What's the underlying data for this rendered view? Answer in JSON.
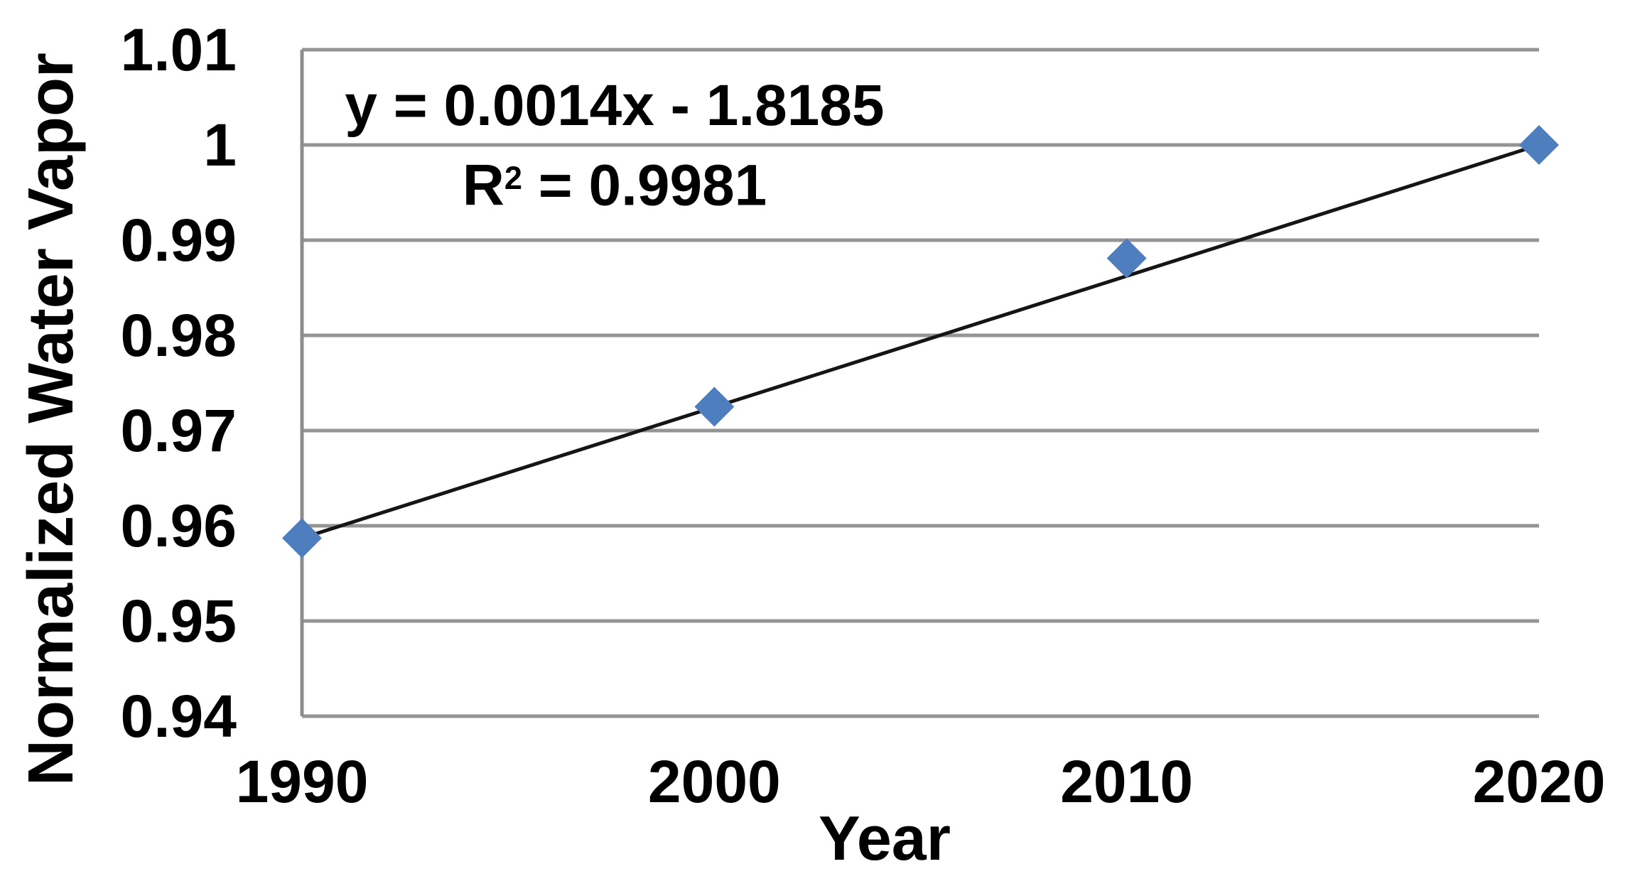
{
  "figure": {
    "background": "#ffffff",
    "text_color": "#000000"
  },
  "chart_data": {
    "type": "scatter",
    "title": "",
    "xlabel": "Year",
    "ylabel": "Normalized Water Vapor",
    "x": [
      1990,
      2000,
      2010,
      2020
    ],
    "values": [
      0.9587,
      0.9725,
      0.9881,
      1.0
    ],
    "xlim": [
      1990,
      2020
    ],
    "ylim": [
      0.94,
      1.01
    ],
    "x_ticks": [
      1990,
      2000,
      2010,
      2020
    ],
    "x_tick_labels": [
      "1990",
      "2000",
      "2010",
      "2020"
    ],
    "y_ticks": [
      0.94,
      0.95,
      0.96,
      0.97,
      0.98,
      0.99,
      1.0,
      1.01
    ],
    "y_tick_labels": [
      "0.94",
      "0.95",
      "0.96",
      "0.97",
      "0.98",
      "0.99",
      "1",
      "1.01"
    ],
    "grid": "horizontal-only",
    "legend": "none",
    "gridline_color": "#949494",
    "axis_color": "#8c8c8c",
    "marker": {
      "shape": "diamond",
      "color": "#4E7EBD"
    },
    "trendline": {
      "type": "linear",
      "color": "#151515",
      "equation": {
        "line1": "y = 0.0014x - 1.8185",
        "r2_base": "R",
        "r2_sup": "2",
        "r2_rest": " = 0.9981"
      }
    }
  }
}
